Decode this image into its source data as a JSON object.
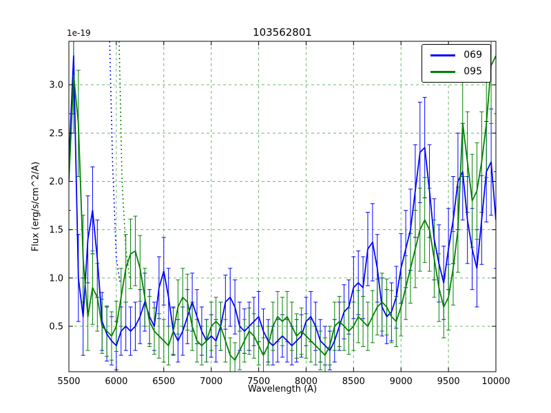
{
  "figure": {
    "title": "103562801",
    "xlabel": "Wavelength (A)",
    "ylabel": "Flux (erg/s/cm^2/A)",
    "y_offset_text": "1e-19"
  },
  "chart_data": {
    "type": "line",
    "title": "103562801",
    "xlabel": "Wavelength (A)",
    "ylabel": "Flux (erg/s/cm^2/A)",
    "y_scale_factor": "1e-19",
    "xlim": [
      5500,
      10000
    ],
    "ylim": [
      0.03,
      3.45
    ],
    "xticks": [
      5500,
      6000,
      6500,
      7000,
      7500,
      8000,
      8500,
      9000,
      9500,
      10000
    ],
    "yticks": [
      0.5,
      1.0,
      1.5,
      2.0,
      2.5,
      3.0
    ],
    "grid": {
      "visible": true,
      "color": "#55aa55",
      "style": "dashed"
    },
    "legend_position": "upper right",
    "x": [
      5500,
      5550,
      5600,
      5650,
      5700,
      5750,
      5800,
      5850,
      5900,
      5950,
      6000,
      6050,
      6100,
      6150,
      6200,
      6250,
      6300,
      6350,
      6400,
      6450,
      6500,
      6550,
      6600,
      6650,
      6700,
      6750,
      6800,
      6850,
      6900,
      6950,
      7000,
      7050,
      7100,
      7150,
      7200,
      7250,
      7300,
      7350,
      7400,
      7450,
      7500,
      7550,
      7600,
      7650,
      7700,
      7750,
      7800,
      7850,
      7900,
      7950,
      8000,
      8050,
      8100,
      8150,
      8200,
      8250,
      8300,
      8350,
      8400,
      8450,
      8500,
      8550,
      8600,
      8650,
      8700,
      8750,
      8800,
      8850,
      8900,
      8950,
      9000,
      9050,
      9100,
      9150,
      9200,
      9250,
      9300,
      9350,
      9400,
      9450,
      9500,
      9550,
      9600,
      9650,
      9700,
      9750,
      9800,
      9850,
      9900,
      9950,
      10000
    ],
    "series": [
      {
        "name": "069",
        "color": "#0000ff",
        "values": [
          2.2,
          3.3,
          1.0,
          0.6,
          1.4,
          1.7,
          1.2,
          0.55,
          0.42,
          0.35,
          0.3,
          0.45,
          0.5,
          0.45,
          0.5,
          0.6,
          0.75,
          0.6,
          0.5,
          0.9,
          1.07,
          0.8,
          0.45,
          0.35,
          0.45,
          0.6,
          0.75,
          0.6,
          0.45,
          0.35,
          0.4,
          0.35,
          0.5,
          0.75,
          0.8,
          0.7,
          0.5,
          0.45,
          0.5,
          0.55,
          0.6,
          0.45,
          0.35,
          0.3,
          0.35,
          0.4,
          0.35,
          0.3,
          0.35,
          0.4,
          0.55,
          0.6,
          0.5,
          0.35,
          0.3,
          0.25,
          0.35,
          0.5,
          0.65,
          0.7,
          0.9,
          0.95,
          0.9,
          1.3,
          1.37,
          1.1,
          0.7,
          0.6,
          0.65,
          0.8,
          1.1,
          1.3,
          1.5,
          1.9,
          2.3,
          2.35,
          1.9,
          1.4,
          1.15,
          0.95,
          1.3,
          1.6,
          2.0,
          2.1,
          1.6,
          1.3,
          1.1,
          1.6,
          2.1,
          2.2,
          1.6
        ],
        "yerr": [
          0.5,
          0.6,
          0.45,
          0.4,
          0.45,
          0.45,
          0.4,
          0.3,
          0.28,
          0.25,
          0.25,
          0.25,
          0.25,
          0.25,
          0.25,
          0.28,
          0.3,
          0.28,
          0.25,
          0.32,
          0.35,
          0.3,
          0.25,
          0.22,
          0.25,
          0.28,
          0.3,
          0.28,
          0.25,
          0.22,
          0.22,
          0.22,
          0.25,
          0.28,
          0.3,
          0.28,
          0.25,
          0.23,
          0.25,
          0.25,
          0.26,
          0.23,
          0.22,
          0.2,
          0.22,
          0.22,
          0.22,
          0.2,
          0.22,
          0.22,
          0.25,
          0.26,
          0.25,
          0.22,
          0.2,
          0.2,
          0.22,
          0.25,
          0.28,
          0.28,
          0.32,
          0.33,
          0.32,
          0.38,
          0.4,
          0.35,
          0.3,
          0.28,
          0.3,
          0.32,
          0.36,
          0.4,
          0.42,
          0.48,
          0.52,
          0.52,
          0.48,
          0.42,
          0.4,
          0.38,
          0.42,
          0.45,
          0.5,
          0.5,
          0.45,
          0.42,
          0.4,
          0.46,
          0.52,
          0.55,
          0.5
        ]
      },
      {
        "name": "095",
        "color": "#008000",
        "values": [
          2.0,
          3.1,
          2.6,
          1.2,
          0.6,
          0.9,
          0.8,
          0.5,
          0.45,
          0.4,
          0.5,
          0.8,
          1.1,
          1.25,
          1.28,
          1.1,
          0.8,
          0.55,
          0.45,
          0.4,
          0.35,
          0.3,
          0.45,
          0.7,
          0.8,
          0.75,
          0.5,
          0.35,
          0.3,
          0.35,
          0.5,
          0.55,
          0.5,
          0.35,
          0.2,
          0.15,
          0.25,
          0.35,
          0.45,
          0.4,
          0.3,
          0.2,
          0.3,
          0.5,
          0.6,
          0.55,
          0.6,
          0.5,
          0.4,
          0.45,
          0.4,
          0.35,
          0.3,
          0.25,
          0.2,
          0.3,
          0.5,
          0.55,
          0.5,
          0.45,
          0.5,
          0.6,
          0.55,
          0.5,
          0.6,
          0.7,
          0.75,
          0.7,
          0.6,
          0.55,
          0.7,
          0.9,
          1.1,
          1.3,
          1.5,
          1.6,
          1.5,
          1.2,
          0.9,
          0.7,
          0.8,
          1.1,
          1.5,
          2.6,
          2.2,
          1.8,
          1.9,
          2.2,
          2.6,
          3.2,
          3.3
        ],
        "yerr": [
          0.5,
          0.6,
          0.55,
          0.45,
          0.35,
          0.38,
          0.35,
          0.28,
          0.26,
          0.25,
          0.26,
          0.3,
          0.35,
          0.36,
          0.36,
          0.34,
          0.3,
          0.26,
          0.24,
          0.23,
          0.22,
          0.2,
          0.24,
          0.28,
          0.3,
          0.29,
          0.25,
          0.22,
          0.2,
          0.22,
          0.25,
          0.25,
          0.25,
          0.22,
          0.18,
          0.18,
          0.2,
          0.22,
          0.24,
          0.23,
          0.2,
          0.18,
          0.2,
          0.25,
          0.26,
          0.25,
          0.26,
          0.25,
          0.23,
          0.24,
          0.23,
          0.22,
          0.2,
          0.2,
          0.18,
          0.2,
          0.25,
          0.26,
          0.25,
          0.24,
          0.25,
          0.27,
          0.26,
          0.25,
          0.27,
          0.29,
          0.3,
          0.29,
          0.27,
          0.26,
          0.3,
          0.33,
          0.36,
          0.4,
          0.43,
          0.44,
          0.43,
          0.4,
          0.35,
          0.32,
          0.34,
          0.38,
          0.44,
          0.55,
          0.52,
          0.48,
          0.5,
          0.52,
          0.56,
          0.6,
          0.6
        ]
      }
    ],
    "dotted_segments": [
      {
        "color": "#0000ff",
        "x": [
          5930,
          5960,
          6000,
          6040
        ],
        "y": [
          3.45,
          2.2,
          1.2,
          0.95
        ]
      },
      {
        "color": "#008000",
        "x": [
          6030,
          6060,
          6100,
          6140
        ],
        "y": [
          3.45,
          2.0,
          1.3,
          1.0
        ]
      }
    ]
  }
}
